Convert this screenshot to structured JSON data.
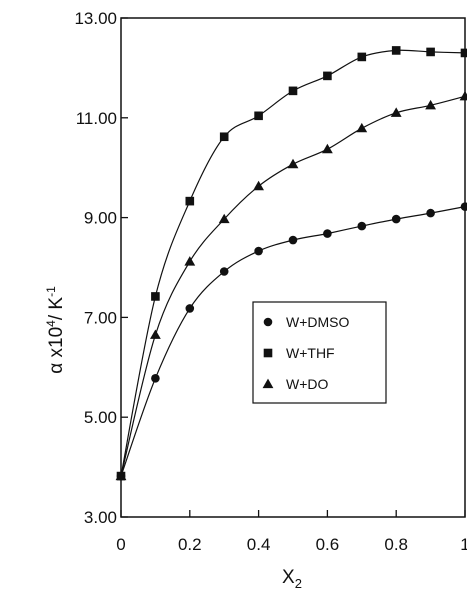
{
  "chart_data": {
    "type": "line",
    "title": "",
    "xlabel": {
      "base": "X",
      "sub": "2"
    },
    "ylabel": {
      "base": "α x10",
      "sup1": "4",
      "mid": "/ K",
      "sup2": "-1"
    },
    "xlim": [
      0,
      1
    ],
    "ylim": [
      3,
      13
    ],
    "x_ticks": [
      0,
      0.2,
      0.4,
      0.6,
      0.8,
      1
    ],
    "x_tick_labels": [
      "0",
      "0.2",
      "0.4",
      "0.6",
      "0.8",
      "1"
    ],
    "y_ticks": [
      3,
      5,
      7,
      9,
      11,
      13
    ],
    "y_tick_labels": [
      "3.00",
      "5.00",
      "7.00",
      "9.00",
      "11.00",
      "13.00"
    ],
    "grid": false,
    "legend_position": "center-right",
    "series": [
      {
        "name": "W+DMSO",
        "marker": "circle",
        "x": [
          0,
          0.1,
          0.2,
          0.3,
          0.4,
          0.5,
          0.6,
          0.7,
          0.8,
          0.9,
          1.0
        ],
        "y": [
          3.82,
          5.78,
          7.18,
          7.92,
          8.33,
          8.55,
          8.68,
          8.83,
          8.97,
          9.09,
          9.22
        ]
      },
      {
        "name": "W+THF",
        "marker": "square",
        "x": [
          0,
          0.1,
          0.2,
          0.3,
          0.4,
          0.5,
          0.6,
          0.7,
          0.8,
          0.9,
          1.0
        ],
        "y": [
          3.82,
          7.42,
          9.33,
          10.62,
          11.04,
          11.54,
          11.84,
          12.22,
          12.35,
          12.32,
          12.3
        ]
      },
      {
        "name": "W+DO",
        "marker": "triangle",
        "x": [
          0,
          0.1,
          0.2,
          0.3,
          0.4,
          0.5,
          0.6,
          0.7,
          0.8,
          0.9,
          1.0
        ],
        "y": [
          3.82,
          6.65,
          8.12,
          8.97,
          9.63,
          10.07,
          10.37,
          10.79,
          11.1,
          11.25,
          11.43
        ]
      }
    ]
  },
  "colors": {
    "ink": "#111111",
    "background": "#ffffff"
  }
}
